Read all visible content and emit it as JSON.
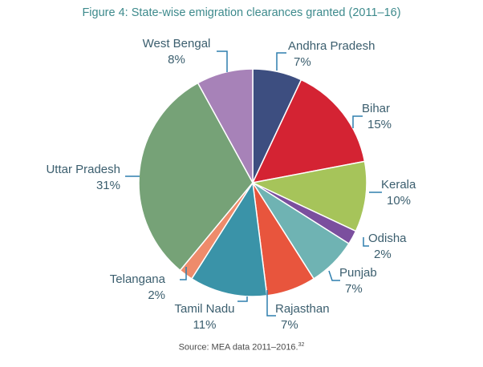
{
  "title": "Figure 4: State-wise emigration clearances granted (2011–16)",
  "source": "Source: MEA data 2011–2016.",
  "source_ref": "32",
  "chart_data": {
    "type": "pie",
    "title": "Figure 4: State-wise emigration clearances granted (2011–16)",
    "unit": "%",
    "slices": [
      {
        "label": "Andhra Pradesh",
        "value": 7,
        "display": "7%",
        "color": "#3d4e80"
      },
      {
        "label": "Bihar",
        "value": 15,
        "display": "15%",
        "color": "#d42333"
      },
      {
        "label": "Kerala",
        "value": 10,
        "display": "10%",
        "color": "#a6c45a"
      },
      {
        "label": "Odisha",
        "value": 2,
        "display": "2%",
        "color": "#7b4f9e"
      },
      {
        "label": "Punjab",
        "value": 7,
        "display": "7%",
        "color": "#6fb3b3"
      },
      {
        "label": "Rajasthan",
        "value": 7,
        "display": "7%",
        "color": "#e8553d"
      },
      {
        "label": "Tamil Nadu",
        "value": 11,
        "display": "11%",
        "color": "#3a93a8"
      },
      {
        "label": "Telangana",
        "value": 2,
        "display": "2%",
        "color": "#ee8b6b"
      },
      {
        "label": "Uttar Pradesh",
        "value": 31,
        "display": "31%",
        "color": "#76a277"
      },
      {
        "label": "West Bengal",
        "value": 8,
        "display": "8%",
        "color": "#a782b8"
      }
    ]
  }
}
